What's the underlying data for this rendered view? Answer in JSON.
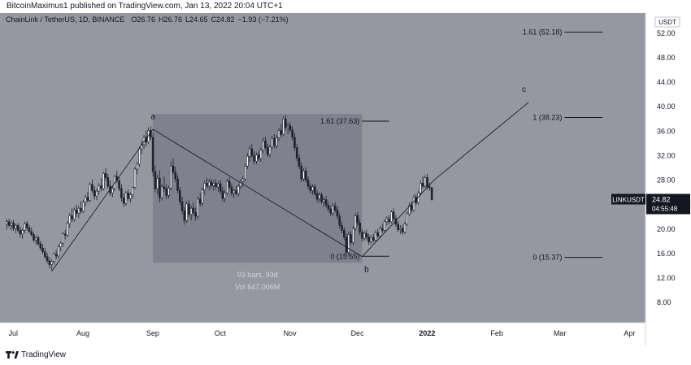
{
  "publish_line": "BitcoinMaximus1 published on TradingView.com, Jan 13, 2022 20:04 UTC+1",
  "footer": {
    "brand": "TradingView"
  },
  "colors": {
    "plot_bg": "#9598a1",
    "axis_bg": "#ffffff",
    "candle": "#ffffff",
    "wick": "#1e222d",
    "box_fill": "#787b86",
    "line": "#131722",
    "tag_bg": "#131722",
    "tag_text": "#ffffff"
  },
  "chart_data": {
    "type": "candlestick",
    "title": "ChainLink / TetherUS, 1D, BINANCE",
    "ohlc": {
      "open_label": "O",
      "open": "26.76",
      "high_label": "H",
      "high": "26.76",
      "low_label": "L",
      "low": "24.65",
      "close_label": "C",
      "close": "24.82",
      "change": "−1.93 (−7.21%)"
    },
    "currency": "USDT",
    "y_ticks": [
      "52.00",
      "48.00",
      "44.00",
      "40.00",
      "36.00",
      "32.00",
      "28.00",
      "24.00",
      "20.00",
      "16.00",
      "12.00",
      "8.00"
    ],
    "ylim": [
      4.7,
      55.3
    ],
    "x_ticks": [
      {
        "label": "Jul",
        "day": 0
      },
      {
        "label": "Aug",
        "day": 31
      },
      {
        "label": "Sep",
        "day": 62
      },
      {
        "label": "Oct",
        "day": 92
      },
      {
        "label": "Nov",
        "day": 123
      },
      {
        "label": "Dec",
        "day": 153
      },
      {
        "label": "2022",
        "day": 184
      },
      {
        "label": "Feb",
        "day": 215
      },
      {
        "label": "Mar",
        "day": 243
      },
      {
        "label": "Apr",
        "day": 274
      }
    ],
    "xlim": [
      -3,
      284
    ],
    "price_tag": {
      "symbol": "LINKUSDT",
      "price": "24.82",
      "countdown": "04:55:48",
      "value": 24.82
    },
    "wave_points": [
      {
        "label": "",
        "day": 20,
        "price": 13.1
      },
      {
        "label": "a",
        "day": 65,
        "price": 36.3
      },
      {
        "label": "b",
        "day": 158,
        "price": 15.5
      },
      {
        "label": "",
        "day": 190,
        "price": 28.0
      },
      {
        "label": "c",
        "day": 232,
        "price": 40.7
      }
    ],
    "wave_labels": [
      {
        "text": "a",
        "day": 65,
        "price": 38.0
      },
      {
        "text": "b",
        "day": 160,
        "price": 13.0
      },
      {
        "text": "c",
        "day": 230,
        "price": 42.4
      }
    ],
    "range_box": {
      "day_start": 65,
      "day_end": 158,
      "price_low": 14.5,
      "price_high": 38.8,
      "bars_label": "93 bars, 93d",
      "vol_label": "Vol 647.006M"
    },
    "fib_levels": [
      {
        "label": "1.61 (37.63)",
        "day_start": 158,
        "day_end": 170,
        "price": 37.63
      },
      {
        "label": "0 (15.55)",
        "day_start": 158,
        "day_end": 170,
        "price": 15.55
      },
      {
        "label": "1.61 (52.18)",
        "day_start": 248,
        "day_end": 265,
        "price": 52.18
      },
      {
        "label": "1 (38.23)",
        "day_start": 248,
        "day_end": 265,
        "price": 38.23
      },
      {
        "label": "0 (15.37)",
        "day_start": 248,
        "day_end": 265,
        "price": 15.37
      }
    ],
    "candles": [
      [
        0,
        20.8,
        21.6,
        19.9,
        21.2
      ],
      [
        1,
        21.2,
        21.7,
        20.3,
        20.6
      ],
      [
        2,
        20.6,
        21.4,
        19.8,
        21.0
      ],
      [
        3,
        21.0,
        21.5,
        19.7,
        20.1
      ],
      [
        4,
        20.1,
        20.9,
        19.3,
        20.6
      ],
      [
        5,
        20.6,
        21.0,
        19.5,
        19.8
      ],
      [
        6,
        19.8,
        20.4,
        18.6,
        19.2
      ],
      [
        7,
        19.2,
        20.1,
        18.4,
        19.8
      ],
      [
        8,
        19.8,
        21.2,
        19.3,
        20.9
      ],
      [
        9,
        20.9,
        21.3,
        19.8,
        20.2
      ],
      [
        10,
        20.2,
        20.7,
        19.3,
        19.6
      ],
      [
        11,
        19.6,
        20.3,
        18.8,
        19.1
      ],
      [
        12,
        19.1,
        19.5,
        17.8,
        18.2
      ],
      [
        13,
        18.2,
        18.9,
        17.4,
        18.6
      ],
      [
        14,
        18.6,
        19.0,
        17.3,
        17.6
      ],
      [
        15,
        17.6,
        18.1,
        16.5,
        16.9
      ],
      [
        16,
        16.9,
        17.6,
        15.9,
        16.3
      ],
      [
        17,
        16.3,
        16.9,
        15.1,
        15.5
      ],
      [
        18,
        15.5,
        16.1,
        14.4,
        14.8
      ],
      [
        19,
        14.8,
        15.4,
        13.6,
        14.2
      ],
      [
        20,
        14.2,
        15.0,
        13.3,
        14.7
      ],
      [
        21,
        14.7,
        16.2,
        14.2,
        15.9
      ],
      [
        22,
        15.9,
        16.6,
        15.1,
        15.6
      ],
      [
        23,
        15.6,
        17.4,
        15.2,
        17.1
      ],
      [
        24,
        17.1,
        18.0,
        16.4,
        17.7
      ],
      [
        25,
        17.7,
        19.5,
        17.1,
        19.2
      ],
      [
        26,
        19.2,
        19.9,
        18.3,
        19.0
      ],
      [
        27,
        19.0,
        21.3,
        18.7,
        20.9
      ],
      [
        28,
        20.9,
        22.6,
        20.2,
        22.2
      ],
      [
        29,
        22.2,
        23.4,
        21.1,
        21.6
      ],
      [
        30,
        21.6,
        23.5,
        21.2,
        23.1
      ],
      [
        31,
        23.1,
        24.0,
        22.0,
        22.6
      ],
      [
        32,
        22.6,
        23.8,
        21.8,
        23.4
      ],
      [
        33,
        23.4,
        24.5,
        22.5,
        22.9
      ],
      [
        34,
        22.9,
        24.8,
        22.6,
        24.4
      ],
      [
        35,
        24.4,
        25.6,
        23.7,
        25.2
      ],
      [
        36,
        25.2,
        26.1,
        24.3,
        24.7
      ],
      [
        37,
        24.7,
        27.6,
        24.4,
        27.3
      ],
      [
        38,
        27.3,
        28.1,
        25.9,
        26.3
      ],
      [
        39,
        26.3,
        27.0,
        24.8,
        25.4
      ],
      [
        40,
        25.4,
        26.6,
        24.7,
        26.2
      ],
      [
        41,
        26.2,
        27.5,
        25.6,
        27.1
      ],
      [
        42,
        27.1,
        28.3,
        26.2,
        26.6
      ],
      [
        43,
        26.6,
        29.4,
        26.3,
        29.1
      ],
      [
        44,
        29.1,
        30.0,
        27.9,
        28.4
      ],
      [
        45,
        28.4,
        29.0,
        26.6,
        27.0
      ],
      [
        46,
        27.0,
        27.9,
        25.4,
        25.9
      ],
      [
        47,
        25.9,
        27.0,
        25.2,
        26.6
      ],
      [
        48,
        26.6,
        28.9,
        26.2,
        28.6
      ],
      [
        49,
        28.6,
        29.6,
        27.5,
        27.9
      ],
      [
        50,
        27.9,
        28.5,
        26.2,
        26.6
      ],
      [
        51,
        26.6,
        27.3,
        24.5,
        25.1
      ],
      [
        52,
        25.1,
        25.8,
        23.6,
        24.2
      ],
      [
        53,
        24.2,
        26.2,
        23.8,
        25.9
      ],
      [
        54,
        25.9,
        26.5,
        24.6,
        25.0
      ],
      [
        55,
        25.0,
        26.0,
        24.3,
        25.6
      ],
      [
        56,
        25.6,
        27.0,
        25.0,
        26.8
      ],
      [
        57,
        26.8,
        30.2,
        26.5,
        29.8
      ],
      [
        58,
        29.8,
        31.0,
        28.9,
        30.6
      ],
      [
        59,
        30.6,
        33.5,
        30.2,
        33.1
      ],
      [
        60,
        33.1,
        34.5,
        32.2,
        33.8
      ],
      [
        61,
        33.8,
        35.4,
        33.1,
        35.0
      ],
      [
        62,
        35.0,
        36.1,
        33.4,
        34.2
      ],
      [
        63,
        34.2,
        36.6,
        33.9,
        36.1
      ],
      [
        64,
        36.1,
        36.8,
        34.5,
        35.0
      ],
      [
        65,
        35.0,
        35.8,
        28.6,
        29.4
      ],
      [
        66,
        29.4,
        30.4,
        26.0,
        26.6
      ],
      [
        67,
        26.6,
        28.9,
        25.6,
        28.3
      ],
      [
        68,
        28.3,
        29.6,
        24.4,
        25.1
      ],
      [
        69,
        25.1,
        27.4,
        24.6,
        26.9
      ],
      [
        70,
        26.9,
        28.6,
        26.1,
        26.6
      ],
      [
        71,
        26.6,
        27.3,
        24.9,
        25.5
      ],
      [
        72,
        25.5,
        27.1,
        25.0,
        26.7
      ],
      [
        73,
        26.7,
        31.0,
        26.3,
        30.3
      ],
      [
        74,
        30.3,
        31.5,
        28.9,
        29.3
      ],
      [
        75,
        29.3,
        30.2,
        27.7,
        28.2
      ],
      [
        76,
        28.2,
        28.9,
        25.8,
        26.3
      ],
      [
        77,
        26.3,
        26.9,
        23.9,
        24.5
      ],
      [
        78,
        24.5,
        25.3,
        22.4,
        23.0
      ],
      [
        79,
        23.0,
        23.6,
        20.7,
        21.4
      ],
      [
        80,
        21.4,
        24.6,
        21.0,
        24.1
      ],
      [
        81,
        24.1,
        24.7,
        21.9,
        22.4
      ],
      [
        82,
        22.4,
        23.8,
        21.4,
        23.4
      ],
      [
        83,
        23.4,
        24.4,
        22.2,
        22.7
      ],
      [
        84,
        22.7,
        23.5,
        21.4,
        22.1
      ],
      [
        85,
        22.1,
        25.3,
        21.7,
        24.9
      ],
      [
        86,
        24.9,
        25.9,
        23.7,
        24.2
      ],
      [
        87,
        24.2,
        26.8,
        23.8,
        26.4
      ],
      [
        88,
        26.4,
        27.9,
        25.6,
        27.5
      ],
      [
        89,
        27.5,
        28.4,
        26.6,
        27.0
      ],
      [
        90,
        27.0,
        28.2,
        26.3,
        27.7
      ],
      [
        91,
        27.7,
        28.2,
        26.6,
        27.1
      ],
      [
        92,
        27.1,
        28.0,
        26.2,
        27.5
      ],
      [
        93,
        27.5,
        28.1,
        26.5,
        26.9
      ],
      [
        94,
        26.9,
        27.8,
        26.1,
        27.4
      ],
      [
        95,
        27.4,
        28.0,
        25.7,
        26.2
      ],
      [
        96,
        26.2,
        26.9,
        24.5,
        25.0
      ],
      [
        97,
        25.0,
        26.4,
        24.4,
        25.9
      ],
      [
        98,
        25.9,
        28.2,
        25.5,
        27.8
      ],
      [
        99,
        27.8,
        28.5,
        26.5,
        26.9
      ],
      [
        100,
        26.9,
        27.5,
        25.4,
        25.9
      ],
      [
        101,
        25.9,
        26.6,
        25.1,
        26.3
      ],
      [
        102,
        26.3,
        27.1,
        25.5,
        25.8
      ],
      [
        103,
        25.8,
        27.4,
        25.3,
        27.0
      ],
      [
        104,
        27.0,
        28.1,
        26.5,
        27.8
      ],
      [
        105,
        27.8,
        28.6,
        26.9,
        28.2
      ],
      [
        106,
        28.2,
        30.7,
        27.9,
        30.3
      ],
      [
        107,
        30.3,
        32.4,
        29.8,
        31.9
      ],
      [
        108,
        31.9,
        33.6,
        31.0,
        33.1
      ],
      [
        109,
        33.1,
        33.9,
        31.6,
        32.0
      ],
      [
        110,
        32.0,
        32.7,
        30.6,
        31.1
      ],
      [
        111,
        31.1,
        32.5,
        30.6,
        32.1
      ],
      [
        112,
        32.1,
        32.7,
        31.1,
        31.5
      ],
      [
        113,
        31.5,
        33.3,
        31.0,
        32.9
      ],
      [
        114,
        32.9,
        34.9,
        32.4,
        34.4
      ],
      [
        115,
        34.4,
        35.1,
        32.9,
        33.3
      ],
      [
        116,
        33.3,
        33.9,
        31.8,
        32.2
      ],
      [
        117,
        32.2,
        33.8,
        31.7,
        33.4
      ],
      [
        118,
        33.4,
        35.2,
        32.9,
        34.8
      ],
      [
        119,
        34.8,
        35.5,
        33.2,
        33.6
      ],
      [
        120,
        33.6,
        35.3,
        33.1,
        34.9
      ],
      [
        121,
        34.9,
        36.5,
        34.4,
        36.1
      ],
      [
        122,
        36.1,
        37.2,
        35.1,
        35.5
      ],
      [
        123,
        35.5,
        38.4,
        35.2,
        38.0
      ],
      [
        124,
        38.0,
        38.6,
        36.1,
        36.6
      ],
      [
        125,
        36.6,
        37.3,
        35.5,
        36.9
      ],
      [
        126,
        36.9,
        37.5,
        35.8,
        36.2
      ],
      [
        127,
        36.2,
        36.8,
        34.5,
        35.0
      ],
      [
        128,
        35.0,
        35.7,
        32.8,
        33.3
      ],
      [
        129,
        33.3,
        33.9,
        31.1,
        31.6
      ],
      [
        130,
        31.6,
        32.2,
        29.8,
        30.3
      ],
      [
        131,
        30.3,
        30.9,
        27.7,
        28.2
      ],
      [
        132,
        28.2,
        29.9,
        27.8,
        29.5
      ],
      [
        133,
        29.5,
        30.1,
        27.6,
        28.0
      ],
      [
        134,
        28.0,
        28.6,
        26.5,
        27.0
      ],
      [
        135,
        27.0,
        27.5,
        25.8,
        26.3
      ],
      [
        136,
        26.3,
        27.3,
        25.6,
        26.9
      ],
      [
        137,
        26.9,
        27.4,
        25.4,
        25.8
      ],
      [
        138,
        25.8,
        26.3,
        24.4,
        24.9
      ],
      [
        139,
        24.9,
        26.0,
        24.3,
        25.6
      ],
      [
        140,
        25.6,
        26.0,
        24.1,
        24.5
      ],
      [
        141,
        24.5,
        25.2,
        23.6,
        24.8
      ],
      [
        142,
        24.8,
        25.4,
        23.5,
        23.9
      ],
      [
        143,
        23.9,
        24.5,
        22.8,
        23.3
      ],
      [
        144,
        23.3,
        23.8,
        22.1,
        22.6
      ],
      [
        145,
        22.6,
        24.2,
        22.2,
        23.8
      ],
      [
        146,
        23.8,
        24.4,
        22.7,
        23.1
      ],
      [
        147,
        23.1,
        23.7,
        21.6,
        22.1
      ],
      [
        148,
        22.1,
        22.6,
        20.1,
        20.6
      ],
      [
        149,
        20.6,
        21.2,
        19.3,
        19.8
      ],
      [
        150,
        19.8,
        20.3,
        18.2,
        18.7
      ],
      [
        151,
        18.7,
        19.3,
        15.6,
        16.2
      ],
      [
        152,
        16.2,
        19.6,
        15.5,
        19.1
      ],
      [
        153,
        19.1,
        19.7,
        17.4,
        17.8
      ],
      [
        154,
        17.8,
        20.5,
        17.4,
        20.1
      ],
      [
        155,
        20.1,
        22.6,
        19.7,
        22.2
      ],
      [
        156,
        22.2,
        22.8,
        20.5,
        21.0
      ],
      [
        157,
        21.0,
        21.6,
        19.1,
        19.5
      ],
      [
        158,
        19.5,
        20.1,
        18.0,
        18.5
      ],
      [
        159,
        18.5,
        19.7,
        18.1,
        19.3
      ],
      [
        160,
        19.3,
        19.9,
        18.2,
        18.7
      ],
      [
        161,
        18.7,
        19.2,
        17.4,
        17.9
      ],
      [
        162,
        17.9,
        19.0,
        17.5,
        18.6
      ],
      [
        163,
        18.6,
        19.2,
        17.8,
        18.2
      ],
      [
        164,
        18.2,
        19.8,
        17.9,
        19.4
      ],
      [
        165,
        19.4,
        20.0,
        18.5,
        18.9
      ],
      [
        166,
        18.9,
        20.5,
        18.5,
        20.1
      ],
      [
        167,
        20.1,
        20.9,
        19.4,
        19.8
      ],
      [
        168,
        19.8,
        21.6,
        19.5,
        21.2
      ],
      [
        169,
        21.2,
        22.1,
        20.6,
        21.7
      ],
      [
        170,
        21.7,
        22.3,
        20.8,
        21.2
      ],
      [
        171,
        21.2,
        23.1,
        20.9,
        22.8
      ],
      [
        172,
        22.8,
        23.4,
        21.3,
        21.7
      ],
      [
        173,
        21.7,
        22.3,
        20.4,
        20.8
      ],
      [
        174,
        20.8,
        21.3,
        19.5,
        19.9
      ],
      [
        175,
        19.9,
        20.6,
        19.2,
        20.1
      ],
      [
        176,
        20.1,
        20.7,
        19.1,
        19.5
      ],
      [
        177,
        19.5,
        21.2,
        19.2,
        20.8
      ],
      [
        178,
        20.8,
        22.9,
        20.5,
        22.5
      ],
      [
        179,
        22.5,
        24.3,
        22.1,
        23.9
      ],
      [
        180,
        23.9,
        24.5,
        22.6,
        23.1
      ],
      [
        181,
        23.1,
        25.6,
        22.8,
        25.2
      ],
      [
        182,
        25.2,
        25.8,
        23.9,
        24.3
      ],
      [
        183,
        24.3,
        26.3,
        24.0,
        25.9
      ],
      [
        184,
        25.9,
        27.9,
        25.5,
        27.5
      ],
      [
        185,
        27.5,
        28.6,
        26.6,
        27.0
      ],
      [
        186,
        27.0,
        28.8,
        26.7,
        28.4
      ],
      [
        187,
        28.4,
        29.0,
        26.5,
        26.9
      ],
      [
        188,
        26.9,
        27.6,
        26.3,
        26.76
      ],
      [
        189,
        26.76,
        26.76,
        24.65,
        24.82
      ]
    ]
  }
}
